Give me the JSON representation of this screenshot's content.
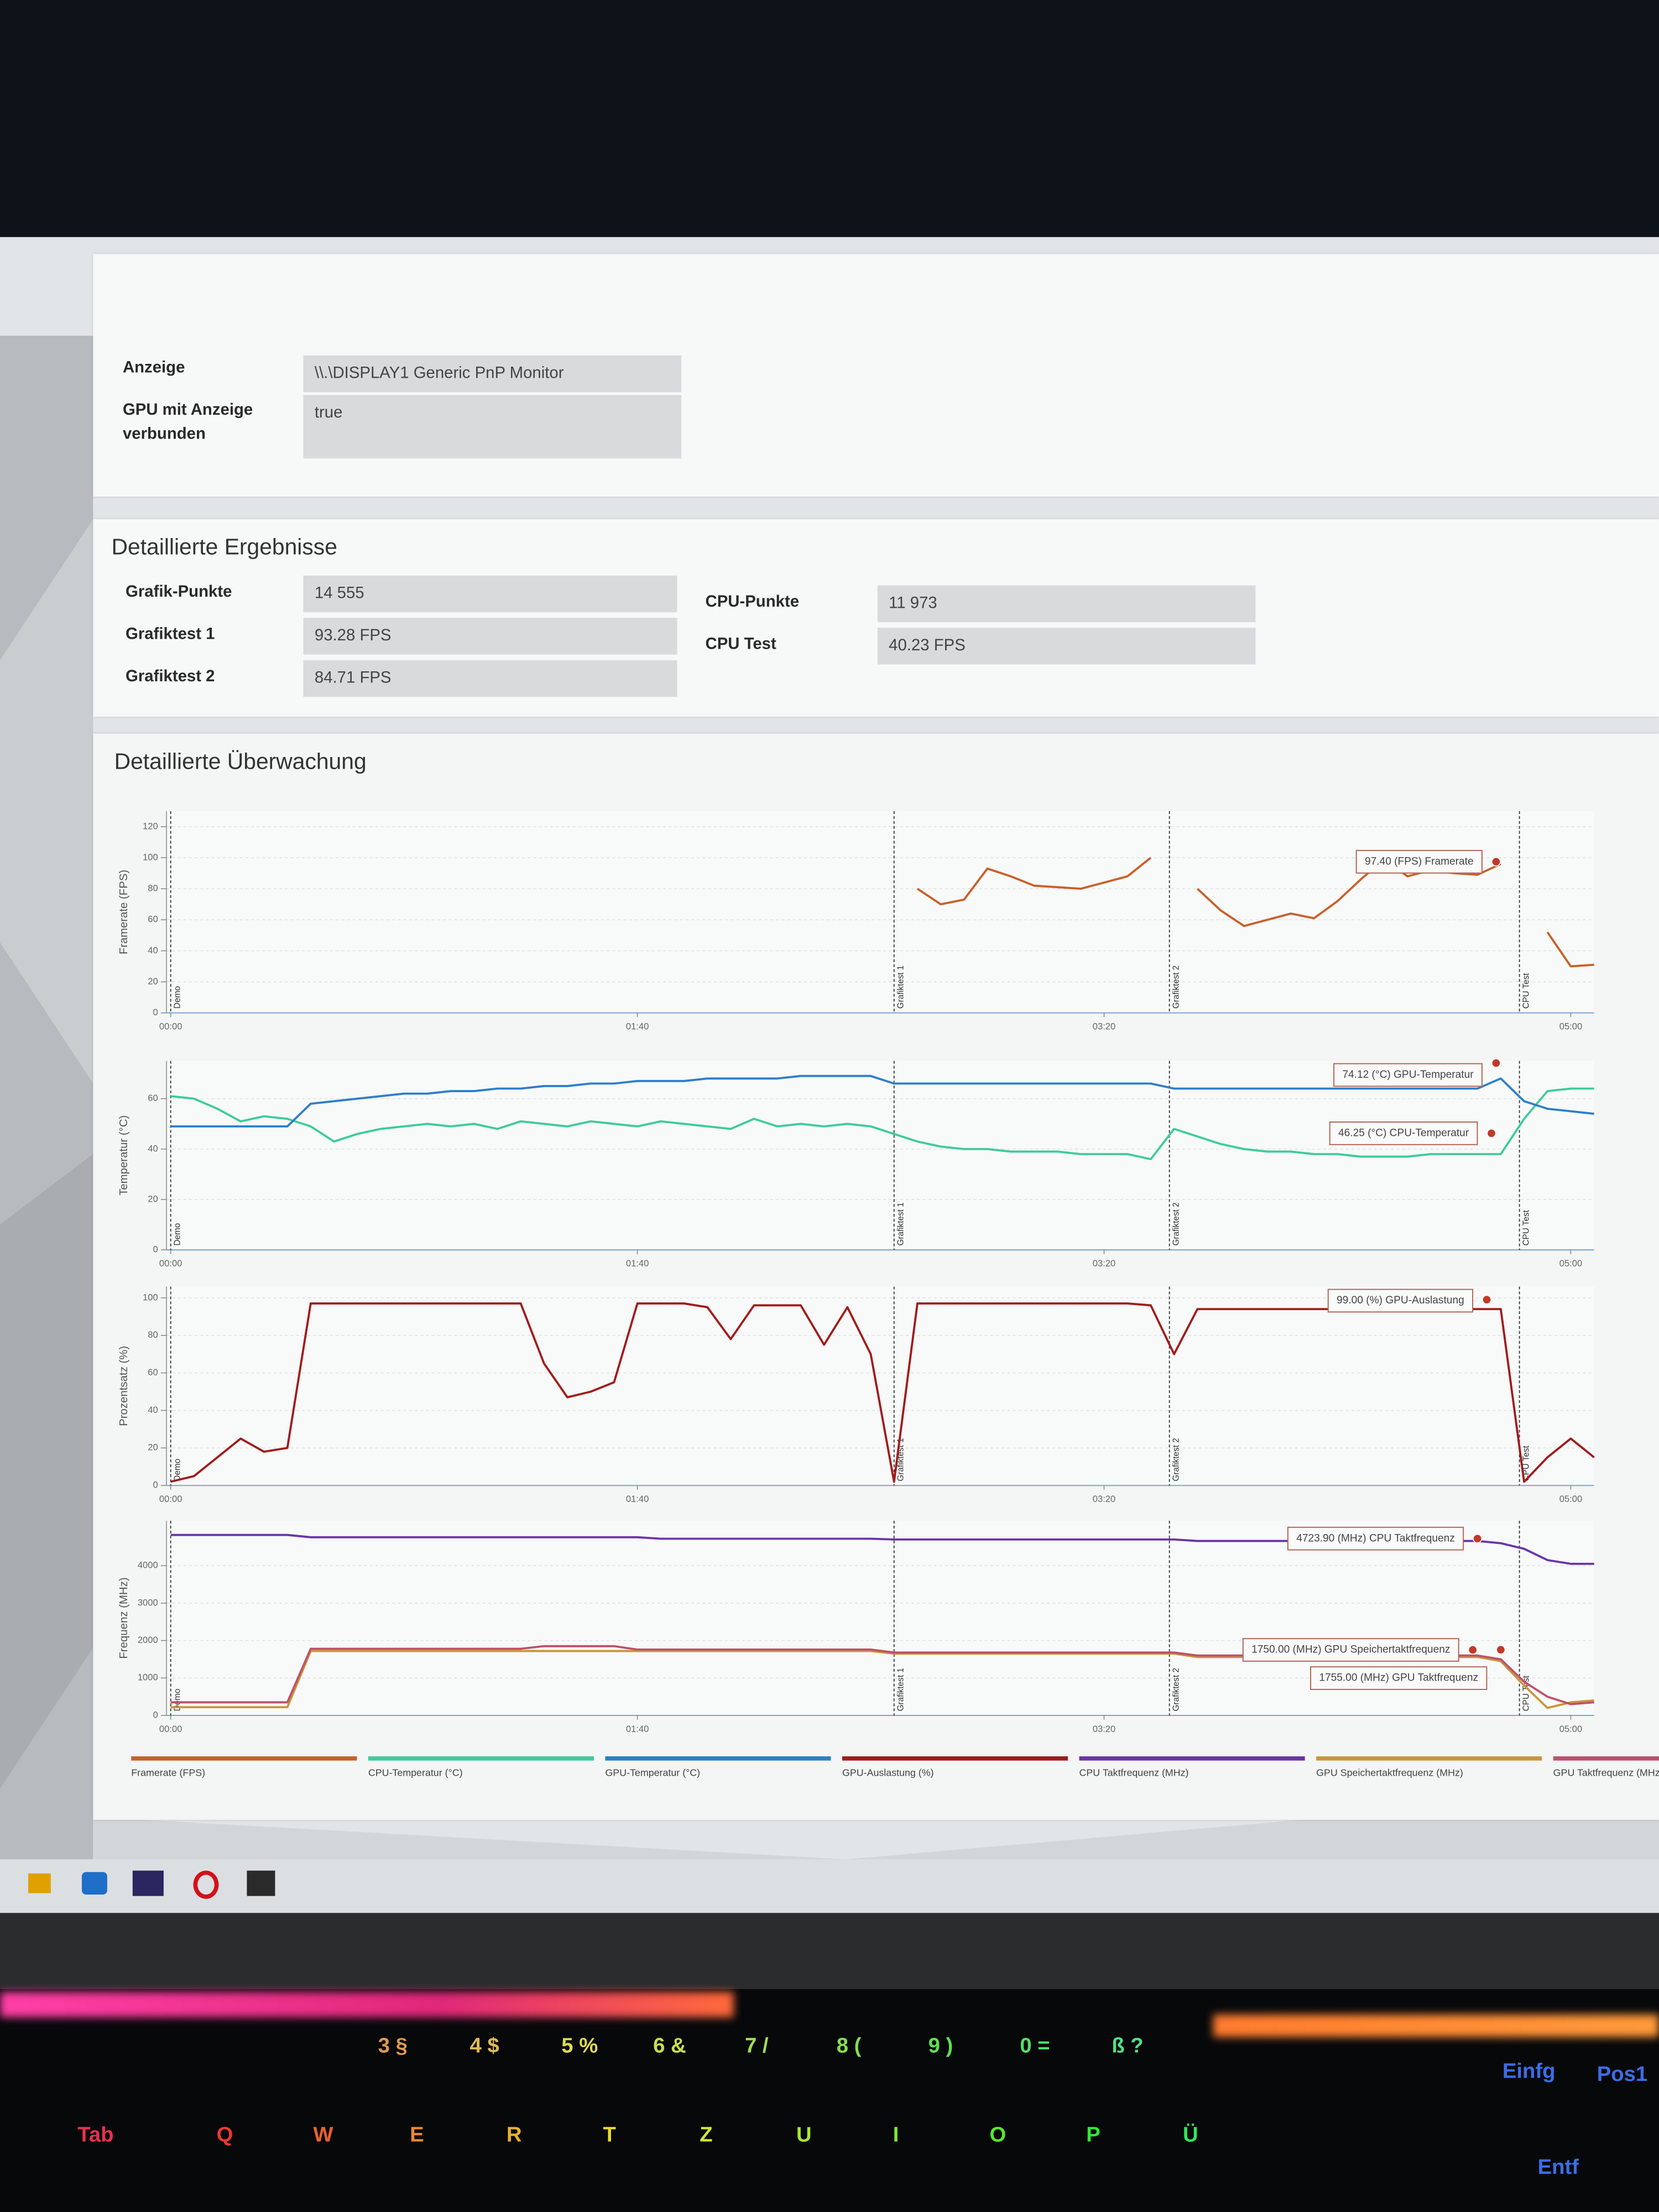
{
  "display_info": {
    "rows": [
      {
        "label": "Anzeige",
        "value": "\\\\.\\DISPLAY1 Generic PnP Monitor"
      },
      {
        "label": "GPU mit Anzeige verbunden",
        "value": "true"
      }
    ]
  },
  "results": {
    "title": "Detaillierte Ergebnisse",
    "left": [
      {
        "label": "Grafik-Punkte",
        "value": "14 555"
      },
      {
        "label": "Grafiktest 1",
        "value": "93.28 FPS"
      },
      {
        "label": "Grafiktest 2",
        "value": "84.71 FPS"
      }
    ],
    "right": [
      {
        "label": "CPU-Punkte",
        "value": "11 973"
      },
      {
        "label": "CPU Test",
        "value": "40.23 FPS"
      }
    ]
  },
  "monitoring": {
    "title": "Detaillierte Überwachung"
  },
  "chart_data": [
    {
      "type": "line",
      "y_label": "Framerate (FPS)",
      "x": [
        0,
        5,
        10,
        15,
        20,
        25,
        30,
        35,
        40,
        45,
        50,
        55,
        60,
        65,
        70,
        75,
        80,
        85,
        90,
        95,
        100,
        105,
        110,
        115,
        120,
        125,
        130,
        135,
        140,
        145,
        150,
        155,
        160,
        165,
        170,
        175,
        180,
        185,
        190,
        195,
        200,
        205,
        210,
        215,
        220,
        225,
        230,
        235,
        240,
        245,
        250,
        255,
        260,
        265,
        270,
        275,
        280,
        285,
        290,
        295,
        300,
        305
      ],
      "xlim": [
        0,
        305
      ],
      "xticks": [
        {
          "value": 0,
          "label": "00:00"
        },
        {
          "value": 100,
          "label": "01:40"
        },
        {
          "value": 200,
          "label": "03:20"
        },
        {
          "value": 300,
          "label": "05:00"
        }
      ],
      "ylim": [
        0,
        130
      ],
      "yticks": [
        0,
        20,
        40,
        60,
        80,
        100,
        120
      ],
      "grid": true,
      "markers": [
        {
          "x": 0,
          "label": "Demo"
        },
        {
          "x": 155,
          "label": "Grafiktest 1"
        },
        {
          "x": 214,
          "label": "Grafiktest 2"
        },
        {
          "x": 289,
          "label": "CPU Test"
        }
      ],
      "series": [
        {
          "name": "Framerate (FPS)",
          "color": "#c8602a",
          "values": [
            null,
            null,
            null,
            null,
            null,
            null,
            null,
            null,
            null,
            null,
            null,
            null,
            null,
            null,
            null,
            null,
            null,
            null,
            null,
            null,
            null,
            null,
            null,
            null,
            null,
            null,
            null,
            null,
            null,
            null,
            null,
            null,
            80,
            70,
            73,
            93,
            88,
            82,
            81,
            80,
            84,
            88,
            100,
            null,
            80,
            66,
            56,
            60,
            64,
            61,
            72,
            86,
            99,
            88,
            92,
            90,
            89,
            96,
            null,
            52,
            30,
            31
          ]
        }
      ],
      "annotations": [
        {
          "x": 284,
          "value": 97.4,
          "label": "97.40 (FPS) Framerate"
        }
      ]
    },
    {
      "type": "line",
      "y_label": "Temperatur (°C)",
      "x": [
        0,
        5,
        10,
        15,
        20,
        25,
        30,
        35,
        40,
        45,
        50,
        55,
        60,
        65,
        70,
        75,
        80,
        85,
        90,
        95,
        100,
        105,
        110,
        115,
        120,
        125,
        130,
        135,
        140,
        145,
        150,
        155,
        160,
        165,
        170,
        175,
        180,
        185,
        190,
        195,
        200,
        205,
        210,
        215,
        220,
        225,
        230,
        235,
        240,
        245,
        250,
        255,
        260,
        265,
        270,
        275,
        280,
        285,
        290,
        295,
        300,
        305
      ],
      "xlim": [
        0,
        305
      ],
      "xticks": [
        {
          "value": 0,
          "label": "00:00"
        },
        {
          "value": 100,
          "label": "01:40"
        },
        {
          "value": 200,
          "label": "03:20"
        },
        {
          "value": 300,
          "label": "05:00"
        }
      ],
      "ylim": [
        0,
        75
      ],
      "yticks": [
        0,
        20,
        40,
        60
      ],
      "grid": true,
      "markers": [
        {
          "x": 0,
          "label": "Demo"
        },
        {
          "x": 155,
          "label": "Grafiktest 1"
        },
        {
          "x": 214,
          "label": "Grafiktest 2"
        },
        {
          "x": 289,
          "label": "CPU Test"
        }
      ],
      "series": [
        {
          "name": "CPU-Temperatur (°C)",
          "color": "#3dcc9a",
          "values": [
            61,
            60,
            56,
            51,
            53,
            52,
            49,
            43,
            46,
            48,
            49,
            50,
            49,
            50,
            48,
            51,
            50,
            49,
            51,
            50,
            49,
            51,
            50,
            49,
            48,
            52,
            49,
            50,
            49,
            50,
            49,
            46,
            43,
            41,
            40,
            40,
            39,
            39,
            39,
            38,
            38,
            38,
            36,
            48,
            45,
            42,
            40,
            39,
            39,
            38,
            38,
            37,
            37,
            37,
            38,
            38,
            38,
            38,
            52,
            63,
            64,
            64
          ]
        },
        {
          "name": "GPU-Temperatur (°C)",
          "color": "#2d7fc9",
          "values": [
            49,
            49,
            49,
            49,
            49,
            49,
            58,
            59,
            60,
            61,
            62,
            62,
            63,
            63,
            64,
            64,
            65,
            65,
            66,
            66,
            67,
            67,
            67,
            68,
            68,
            68,
            68,
            69,
            69,
            69,
            69,
            66,
            66,
            66,
            66,
            66,
            66,
            66,
            66,
            66,
            66,
            66,
            66,
            64,
            64,
            64,
            64,
            64,
            64,
            64,
            64,
            64,
            64,
            64,
            64,
            64,
            64,
            68,
            59,
            56,
            55,
            54
          ]
        }
      ],
      "annotations": [
        {
          "x": 284,
          "value": 74.12,
          "label": "74.12 (°C) GPU-Temperatur"
        },
        {
          "x": 283,
          "value": 46.25,
          "label": "46.25 (°C) CPU-Temperatur"
        }
      ]
    },
    {
      "type": "line",
      "y_label": "Prozentsatz (%)",
      "x": [
        0,
        5,
        10,
        15,
        20,
        25,
        30,
        35,
        40,
        45,
        50,
        55,
        60,
        65,
        70,
        75,
        80,
        85,
        90,
        95,
        100,
        105,
        110,
        115,
        120,
        125,
        130,
        135,
        140,
        145,
        150,
        155,
        160,
        165,
        170,
        175,
        180,
        185,
        190,
        195,
        200,
        205,
        210,
        215,
        220,
        225,
        230,
        235,
        240,
        245,
        250,
        255,
        260,
        265,
        270,
        275,
        280,
        285,
        290,
        295,
        300,
        305
      ],
      "xlim": [
        0,
        305
      ],
      "xticks": [
        {
          "value": 0,
          "label": "00:00"
        },
        {
          "value": 100,
          "label": "01:40"
        },
        {
          "value": 200,
          "label": "03:20"
        },
        {
          "value": 300,
          "label": "05:00"
        }
      ],
      "ylim": [
        0,
        106
      ],
      "yticks": [
        0,
        20,
        40,
        60,
        80,
        100
      ],
      "grid": true,
      "markers": [
        {
          "x": 0,
          "label": "Demo"
        },
        {
          "x": 155,
          "label": "Grafiktest 1"
        },
        {
          "x": 214,
          "label": "Grafiktest 2"
        },
        {
          "x": 289,
          "label": "CPU Test"
        }
      ],
      "series": [
        {
          "name": "GPU-Auslastung (%)",
          "color": "#a01c1c",
          "values": [
            2,
            5,
            15,
            25,
            18,
            20,
            97,
            97,
            97,
            97,
            97,
            97,
            97,
            97,
            97,
            97,
            65,
            47,
            50,
            55,
            97,
            97,
            97,
            95,
            78,
            96,
            96,
            96,
            75,
            95,
            70,
            2,
            97,
            97,
            97,
            97,
            97,
            97,
            97,
            97,
            97,
            97,
            96,
            70,
            94,
            94,
            94,
            94,
            94,
            94,
            94,
            94,
            94,
            94,
            94,
            94,
            94,
            94,
            2,
            15,
            25,
            15
          ]
        }
      ],
      "annotations": [
        {
          "x": 282,
          "value": 99,
          "label": "99.00 (%) GPU-Auslastung"
        }
      ]
    },
    {
      "type": "line",
      "y_label": "Frequenz (MHz)",
      "x": [
        0,
        5,
        10,
        15,
        20,
        25,
        30,
        35,
        40,
        45,
        50,
        55,
        60,
        65,
        70,
        75,
        80,
        85,
        90,
        95,
        100,
        105,
        110,
        115,
        120,
        125,
        130,
        135,
        140,
        145,
        150,
        155,
        160,
        165,
        170,
        175,
        180,
        185,
        190,
        195,
        200,
        205,
        210,
        215,
        220,
        225,
        230,
        235,
        240,
        245,
        250,
        255,
        260,
        265,
        270,
        275,
        280,
        285,
        290,
        295,
        300,
        305
      ],
      "xlim": [
        0,
        305
      ],
      "xticks": [
        {
          "value": 0,
          "label": "00:00"
        },
        {
          "value": 100,
          "label": "01:40"
        },
        {
          "value": 200,
          "label": "03:20"
        },
        {
          "value": 300,
          "label": "05:00"
        }
      ],
      "ylim": [
        0,
        5200
      ],
      "yticks": [
        0,
        1000,
        2000,
        3000,
        4000
      ],
      "grid": true,
      "markers": [
        {
          "x": 0,
          "label": "Demo"
        },
        {
          "x": 155,
          "label": "Grafiktest 1"
        },
        {
          "x": 214,
          "label": "Grafiktest 2"
        },
        {
          "x": 289,
          "label": "CPU Test"
        }
      ],
      "series": [
        {
          "name": "CPU Taktfrequenz (MHz)",
          "color": "#6a35a8",
          "values": [
            4820,
            4820,
            4820,
            4820,
            4820,
            4820,
            4760,
            4760,
            4760,
            4760,
            4760,
            4760,
            4760,
            4760,
            4760,
            4760,
            4760,
            4760,
            4760,
            4760,
            4760,
            4720,
            4720,
            4720,
            4720,
            4720,
            4720,
            4720,
            4720,
            4720,
            4720,
            4700,
            4700,
            4700,
            4700,
            4700,
            4700,
            4700,
            4700,
            4700,
            4700,
            4700,
            4700,
            4700,
            4660,
            4660,
            4660,
            4660,
            4660,
            4660,
            4660,
            4660,
            4660,
            4660,
            4660,
            4660,
            4660,
            4600,
            4450,
            4150,
            4050,
            4050
          ]
        },
        {
          "name": "GPU Speichertaktfrequenz (MHz)",
          "color": "#c8963c",
          "values": [
            220,
            220,
            220,
            220,
            220,
            220,
            1720,
            1720,
            1720,
            1720,
            1720,
            1720,
            1720,
            1720,
            1720,
            1720,
            1720,
            1720,
            1720,
            1720,
            1720,
            1720,
            1720,
            1720,
            1720,
            1720,
            1720,
            1720,
            1720,
            1720,
            1720,
            1650,
            1650,
            1650,
            1650,
            1650,
            1650,
            1650,
            1650,
            1650,
            1650,
            1650,
            1650,
            1650,
            1560,
            1560,
            1560,
            1560,
            1560,
            1560,
            1560,
            1560,
            1560,
            1560,
            1560,
            1560,
            1560,
            1450,
            800,
            200,
            350,
            400
          ]
        },
        {
          "name": "GPU Taktfrequenz (MHz)",
          "color": "#c0506a",
          "values": [
            350,
            350,
            350,
            350,
            350,
            350,
            1780,
            1780,
            1780,
            1780,
            1780,
            1780,
            1780,
            1780,
            1780,
            1780,
            1850,
            1850,
            1850,
            1850,
            1760,
            1760,
            1760,
            1760,
            1760,
            1760,
            1760,
            1760,
            1760,
            1760,
            1760,
            1680,
            1680,
            1680,
            1680,
            1680,
            1680,
            1680,
            1680,
            1680,
            1680,
            1680,
            1680,
            1680,
            1600,
            1600,
            1600,
            1600,
            1600,
            1600,
            1600,
            1600,
            1600,
            1600,
            1600,
            1600,
            1600,
            1500,
            900,
            500,
            300,
            350
          ]
        }
      ],
      "annotations": [
        {
          "x": 280,
          "value": 4723.9,
          "label": "4723.90 (MHz) CPU Taktfrequenz"
        },
        {
          "x": 279,
          "value": 1750,
          "label": "1750.00 (MHz) GPU Speichertaktfrequenz"
        },
        {
          "x": 285,
          "value": 1755,
          "label": "1755.00 (MHz) GPU Taktfrequenz"
        }
      ]
    }
  ],
  "keyboard": {
    "number_row": [
      "3 §",
      "4 $",
      "5 %",
      "6 &",
      "7 /",
      "8 (",
      "9 )",
      "0 =",
      "ß ?"
    ],
    "letter_row": [
      "Tab",
      "Q",
      "W",
      "E",
      "R",
      "T",
      "Z",
      "U",
      "I",
      "O",
      "P",
      "Ü"
    ],
    "right_keys": [
      "Einfg",
      "Pos1",
      "Entf"
    ]
  }
}
